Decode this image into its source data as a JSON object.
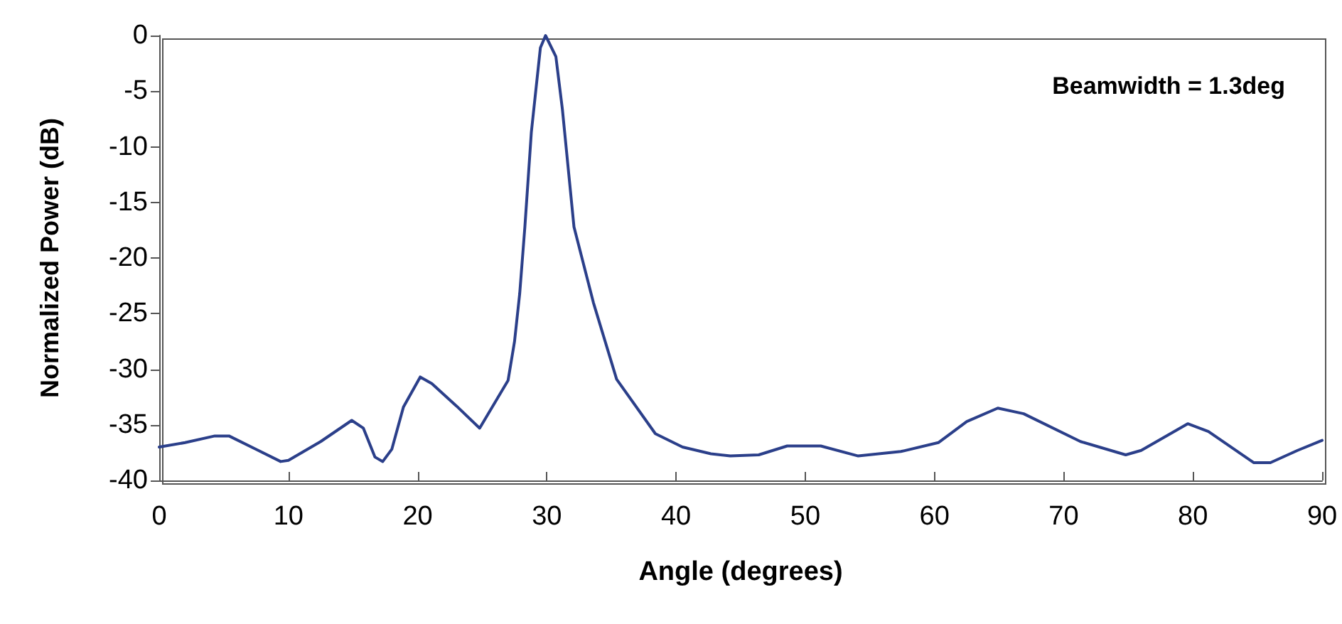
{
  "chart_data": {
    "type": "line",
    "xlabel": "Angle (degrees)",
    "ylabel": "Normalized Power (dB)",
    "annotations": [
      "Beamwidth = 1.3deg"
    ],
    "xlim": [
      0,
      90
    ],
    "xticks": [
      0,
      10,
      20,
      30,
      40,
      50,
      60,
      70,
      80,
      90
    ],
    "ylim": [
      -40,
      0
    ],
    "yticks": [
      -40,
      -35,
      -30,
      -25,
      -20,
      -15,
      -10,
      -5,
      0
    ],
    "marker": "none",
    "line_style": "solid",
    "series": [
      {
        "color": "#2b3f8a",
        "x": [
          0,
          2,
          4.3,
          5.4,
          7.5,
          9.4,
          10,
          12.5,
          14.9,
          15.8,
          16.7,
          17.3,
          18,
          18.9,
          20.2,
          21.1,
          23,
          24.8,
          27,
          27.5,
          27.9,
          28.3,
          28.8,
          29.5,
          29.9,
          30.7,
          31.2,
          32.1,
          33.6,
          35.4,
          38.4,
          40.5,
          42.7,
          44.2,
          46.4,
          48.6,
          51.2,
          54.1,
          57.4,
          60.3,
          62.5,
          64.9,
          66.9,
          71.3,
          74.8,
          76,
          79.6,
          81.2,
          84.7,
          86,
          88.1,
          90
        ],
        "values": [
          -37,
          -36.6,
          -36,
          -36,
          -37.2,
          -38.3,
          -38.2,
          -36.5,
          -34.6,
          -35.3,
          -37.9,
          -38.3,
          -37.2,
          -33.4,
          -30.7,
          -31.3,
          -33.3,
          -35.3,
          -31,
          -27.5,
          -23.2,
          -17.2,
          -8.7,
          -1.1,
          0,
          -1.9,
          -6.6,
          -17.2,
          -24,
          -30.9,
          -35.8,
          -37,
          -37.6,
          -37.8,
          -37.7,
          -36.9,
          -36.9,
          -37.8,
          -37.4,
          -36.6,
          -34.7,
          -33.5,
          -34,
          -36.5,
          -37.7,
          -37.3,
          -34.9,
          -35.6,
          -38.4,
          -38.4,
          -37.3,
          -36.4
        ]
      }
    ]
  }
}
